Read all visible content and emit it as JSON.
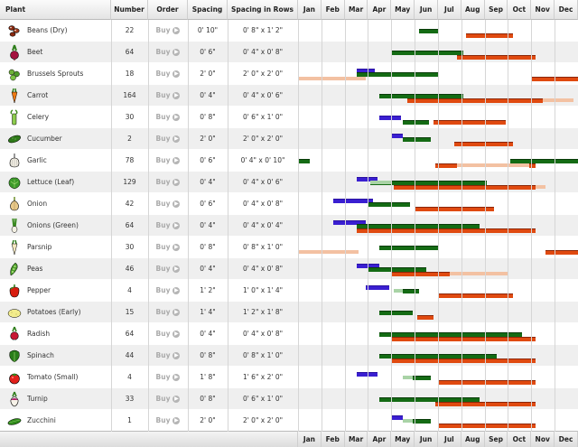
{
  "headers": {
    "plant": "Plant",
    "number": "Number",
    "order": "Order",
    "spacing": "Spacing",
    "spacing_rows": "Spacing in Rows",
    "months": [
      "Jan",
      "Feb",
      "Mar",
      "Apr",
      "May",
      "Jun",
      "Jul",
      "Aug",
      "Sep",
      "Oct",
      "Nov",
      "Dec"
    ]
  },
  "buy_label": "Buy",
  "colors": {
    "sow": "#3a1fd1",
    "transplant": "#146b14",
    "transplant_light": "#a9d3a6",
    "harvest": "#e04a10",
    "harvest_light": "#f3c1a2"
  },
  "plants": [
    {
      "name": "Beans (Dry)",
      "number": "22",
      "spacing": "0' 10\"",
      "rows": "0' 8\" x 1' 2\"",
      "icon": "beans-icon",
      "bars": [
        {
          "t": "tr",
          "r": 0,
          "s": 5.2,
          "e": 6.0
        },
        {
          "t": "hv",
          "r": 1,
          "s": 7.2,
          "e": 9.2
        }
      ]
    },
    {
      "name": "Beet",
      "number": "64",
      "spacing": "0' 6\"",
      "rows": "0' 4\" x 0' 8\"",
      "icon": "beet-icon",
      "bars": [
        {
          "t": "tr",
          "r": 0,
          "s": 4.0,
          "e": 7.1
        },
        {
          "t": "hv",
          "r": 1,
          "s": 6.8,
          "e": 10.2
        }
      ]
    },
    {
      "name": "Brussels Sprouts",
      "number": "18",
      "spacing": "2' 0\"",
      "rows": "2' 0\" x 2' 0\"",
      "icon": "brussels-icon",
      "bars": [
        {
          "t": "sow",
          "r": -1,
          "s": 2.5,
          "e": 3.3
        },
        {
          "t": "tr",
          "r": 0,
          "s": 2.5,
          "e": 6.0
        },
        {
          "t": "hvl",
          "r": 1,
          "s": 0.0,
          "e": 2.9
        },
        {
          "t": "hv",
          "r": 1,
          "s": 10.0,
          "e": 12.0
        }
      ]
    },
    {
      "name": "Carrot",
      "number": "164",
      "spacing": "0' 4\"",
      "rows": "0' 4\" x 0' 6\"",
      "icon": "carrot-icon",
      "bars": [
        {
          "t": "tr",
          "r": 0,
          "s": 3.5,
          "e": 7.1
        },
        {
          "t": "hv",
          "r": 1,
          "s": 4.7,
          "e": 10.5
        },
        {
          "t": "hvl",
          "r": 1,
          "s": 10.5,
          "e": 11.8
        }
      ]
    },
    {
      "name": "Celery",
      "number": "30",
      "spacing": "0' 8\"",
      "rows": "0' 6\" x 1' 0\"",
      "icon": "celery-icon",
      "bars": [
        {
          "t": "sow",
          "r": 0,
          "s": 3.5,
          "e": 4.4
        },
        {
          "t": "tr",
          "r": 1,
          "s": 4.5,
          "e": 5.6
        },
        {
          "t": "hv",
          "r": 1,
          "s": 5.8,
          "e": 8.9
        }
      ]
    },
    {
      "name": "Cucumber",
      "number": "2",
      "spacing": "2' 0\"",
      "rows": "2' 0\" x 2' 0\"",
      "icon": "cucumber-icon",
      "bars": [
        {
          "t": "sow",
          "r": -1,
          "s": 4.0,
          "e": 4.5
        },
        {
          "t": "tr",
          "r": 0,
          "s": 4.5,
          "e": 5.7
        },
        {
          "t": "hv",
          "r": 1,
          "s": 6.7,
          "e": 9.2
        }
      ]
    },
    {
      "name": "Garlic",
      "number": "78",
      "spacing": "0' 6\"",
      "rows": "0' 4\" x 0' 10\"",
      "icon": "garlic-icon",
      "bars": [
        {
          "t": "tr",
          "r": 0,
          "s": 0.05,
          "e": 0.5
        },
        {
          "t": "tr",
          "r": 0,
          "s": 9.1,
          "e": 12.0
        },
        {
          "t": "hv",
          "r": 1,
          "s": 5.9,
          "e": 6.8
        },
        {
          "t": "hvl",
          "r": 1,
          "s": 6.8,
          "e": 9.9
        },
        {
          "t": "hv",
          "r": 1,
          "s": 9.9,
          "e": 10.2
        }
      ]
    },
    {
      "name": "Lettuce (Leaf)",
      "number": "129",
      "spacing": "0' 4\"",
      "rows": "0' 4\" x 0' 6\"",
      "icon": "lettuce-icon",
      "bars": [
        {
          "t": "sow",
          "r": -1,
          "s": 2.5,
          "e": 3.4
        },
        {
          "t": "tr",
          "r": 0,
          "s": 3.1,
          "e": 8.1
        },
        {
          "t": "trl",
          "r": 0,
          "s": 3.1,
          "e": 4.0
        },
        {
          "t": "hv",
          "r": 1,
          "s": 4.1,
          "e": 10.2
        },
        {
          "t": "hvl",
          "r": 1,
          "s": 10.2,
          "e": 10.6
        }
      ]
    },
    {
      "name": "Onion",
      "number": "42",
      "spacing": "0' 6\"",
      "rows": "0' 4\" x 0' 8\"",
      "icon": "onion-icon",
      "bars": [
        {
          "t": "sow",
          "r": -1,
          "s": 1.5,
          "e": 3.2
        },
        {
          "t": "tr",
          "r": 0,
          "s": 3.0,
          "e": 4.8
        },
        {
          "t": "hv",
          "r": 1,
          "s": 5.0,
          "e": 8.4
        }
      ]
    },
    {
      "name": "Onions (Green)",
      "number": "64",
      "spacing": "0' 4\"",
      "rows": "0' 4\" x 0' 4\"",
      "icon": "green-onion-icon",
      "bars": [
        {
          "t": "sow",
          "r": -1,
          "s": 1.5,
          "e": 2.9
        },
        {
          "t": "tr",
          "r": 0,
          "s": 2.5,
          "e": 7.8
        },
        {
          "t": "hv",
          "r": 1,
          "s": 2.5,
          "e": 10.2
        }
      ]
    },
    {
      "name": "Parsnip",
      "number": "30",
      "spacing": "0' 8\"",
      "rows": "0' 8\" x 1' 0\"",
      "icon": "parsnip-icon",
      "bars": [
        {
          "t": "tr",
          "r": 0,
          "s": 3.5,
          "e": 6.0
        },
        {
          "t": "hvl",
          "r": 1,
          "s": 0.0,
          "e": 2.6
        },
        {
          "t": "hv",
          "r": 1,
          "s": 10.6,
          "e": 12.0
        }
      ]
    },
    {
      "name": "Peas",
      "number": "46",
      "spacing": "0' 4\"",
      "rows": "0' 4\" x 0' 8\"",
      "icon": "peas-icon",
      "bars": [
        {
          "t": "sow",
          "r": -1,
          "s": 2.5,
          "e": 3.5
        },
        {
          "t": "tr",
          "r": 0,
          "s": 3.0,
          "e": 5.5
        },
        {
          "t": "hv",
          "r": 1,
          "s": 4.0,
          "e": 6.5
        },
        {
          "t": "hvl",
          "r": 1,
          "s": 6.5,
          "e": 9.0
        }
      ]
    },
    {
      "name": "Pepper",
      "number": "4",
      "spacing": "1' 2\"",
      "rows": "1' 0\" x 1' 4\"",
      "icon": "pepper-icon",
      "bars": [
        {
          "t": "sow",
          "r": -1,
          "s": 2.9,
          "e": 3.9
        },
        {
          "t": "tr",
          "r": 0,
          "s": 4.5,
          "e": 5.2
        },
        {
          "t": "trl",
          "r": 0,
          "s": 4.1,
          "e": 4.5
        },
        {
          "t": "hv",
          "r": 1,
          "s": 6.0,
          "e": 9.2
        }
      ]
    },
    {
      "name": "Potatoes (Early)",
      "number": "15",
      "spacing": "1' 4\"",
      "rows": "1' 2\" x 1' 8\"",
      "icon": "potato-icon",
      "bars": [
        {
          "t": "tr",
          "r": 0,
          "s": 3.5,
          "e": 4.9
        },
        {
          "t": "hv",
          "r": 1,
          "s": 5.1,
          "e": 5.8
        }
      ]
    },
    {
      "name": "Radish",
      "number": "64",
      "spacing": "0' 4\"",
      "rows": "0' 4\" x 0' 8\"",
      "icon": "radish-icon",
      "bars": [
        {
          "t": "tr",
          "r": 0,
          "s": 3.5,
          "e": 9.6
        },
        {
          "t": "hv",
          "r": 1,
          "s": 4.0,
          "e": 10.2
        }
      ]
    },
    {
      "name": "Spinach",
      "number": "44",
      "spacing": "0' 8\"",
      "rows": "0' 8\" x 1' 0\"",
      "icon": "spinach-icon",
      "bars": [
        {
          "t": "tr",
          "r": 0,
          "s": 3.5,
          "e": 8.5
        },
        {
          "t": "hv",
          "r": 1,
          "s": 4.0,
          "e": 10.2
        }
      ]
    },
    {
      "name": "Tomato (Small)",
      "number": "4",
      "spacing": "1' 8\"",
      "rows": "1' 6\" x 2' 0\"",
      "icon": "tomato-icon",
      "bars": [
        {
          "t": "sow",
          "r": -1,
          "s": 2.5,
          "e": 3.4
        },
        {
          "t": "trl",
          "r": 0,
          "s": 4.5,
          "e": 4.9
        },
        {
          "t": "tr",
          "r": 0,
          "s": 4.9,
          "e": 5.7
        },
        {
          "t": "hv",
          "r": 1,
          "s": 6.0,
          "e": 10.2
        }
      ]
    },
    {
      "name": "Turnip",
      "number": "33",
      "spacing": "0' 8\"",
      "rows": "0' 6\" x 1' 0\"",
      "icon": "turnip-icon",
      "bars": [
        {
          "t": "tr",
          "r": 0,
          "s": 3.5,
          "e": 7.8
        },
        {
          "t": "hv",
          "r": 1,
          "s": 5.9,
          "e": 10.2
        }
      ]
    },
    {
      "name": "Zucchini",
      "number": "1",
      "spacing": "2' 0\"",
      "rows": "2' 0\" x 2' 0\"",
      "icon": "zucchini-icon",
      "bars": [
        {
          "t": "sow",
          "r": -1,
          "s": 4.0,
          "e": 4.5
        },
        {
          "t": "trl",
          "r": 0,
          "s": 4.5,
          "e": 4.9
        },
        {
          "t": "tr",
          "r": 0,
          "s": 4.9,
          "e": 5.7
        },
        {
          "t": "hv",
          "r": 1,
          "s": 6.0,
          "e": 10.2
        }
      ]
    }
  ]
}
